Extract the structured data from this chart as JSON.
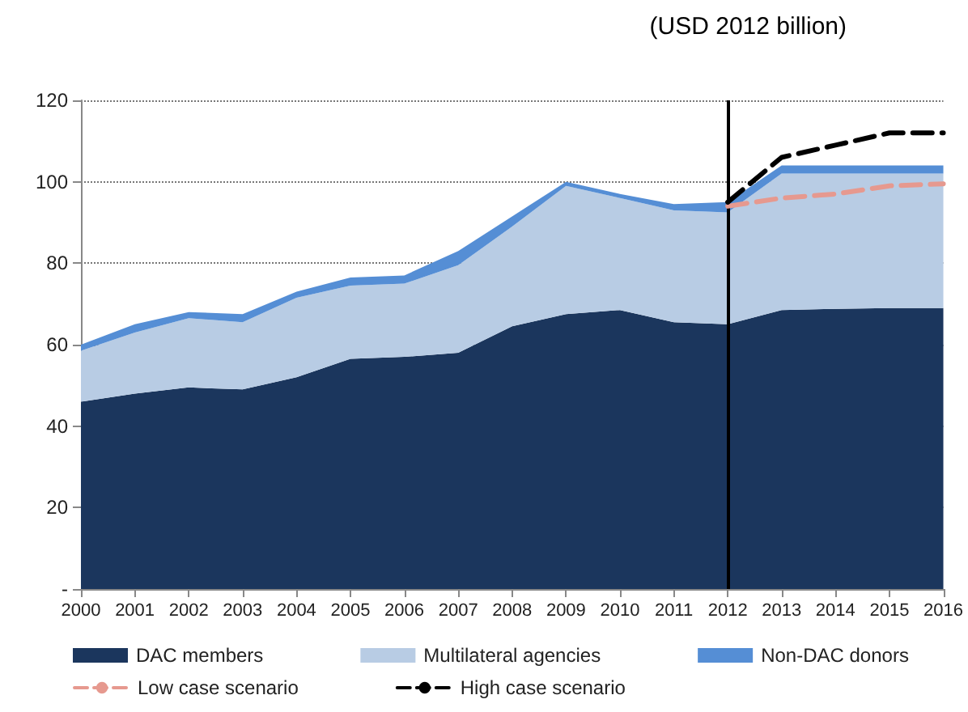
{
  "chart_data": {
    "type": "area",
    "title": "(USD 2012 billion)",
    "stacked": true,
    "categories": [
      "2000",
      "2001",
      "2002",
      "2003",
      "2004",
      "2005",
      "2006",
      "2007",
      "2008",
      "2009",
      "2010",
      "2011",
      "2012",
      "2013",
      "2014",
      "2015",
      "2016"
    ],
    "series": [
      {
        "name": "DAC members",
        "color": "#1b365d",
        "values": [
          46,
          48,
          49.5,
          49,
          52,
          56.5,
          57,
          58,
          64.5,
          67.5,
          68.5,
          65.5,
          65,
          68.5,
          68.8,
          69,
          69
        ]
      },
      {
        "name": "Multilateral agencies",
        "color": "#b8cce4",
        "values": [
          12.5,
          15,
          17,
          16.5,
          19.5,
          18,
          18,
          21.5,
          24.5,
          31.5,
          27.5,
          27.5,
          27.5,
          33.5,
          33.2,
          33,
          33
        ]
      },
      {
        "name": "Non-DAC donors",
        "color": "#558ed5",
        "values": [
          1.5,
          2,
          1.5,
          2,
          1.5,
          2,
          2,
          3.5,
          2.5,
          1,
          1,
          1.5,
          2.5,
          2,
          2,
          2,
          2
        ]
      },
      {
        "name": "Low case scenario",
        "type": "line",
        "color": "#e6998f",
        "line_style": "dashed",
        "marker": "none",
        "values": [
          null,
          null,
          null,
          null,
          null,
          null,
          null,
          null,
          null,
          null,
          null,
          null,
          94,
          96,
          97,
          99,
          99.5
        ]
      },
      {
        "name": "High case scenario",
        "type": "line",
        "color": "#000000",
        "line_style": "dashed",
        "marker": "none",
        "values": [
          null,
          null,
          null,
          null,
          null,
          null,
          null,
          null,
          null,
          null,
          null,
          null,
          95,
          106,
          109,
          112,
          112
        ]
      }
    ],
    "ylim": [
      0,
      120
    ],
    "yticks": [
      {
        "value": 0,
        "label": "-"
      },
      20,
      40,
      60,
      80,
      100,
      120
    ],
    "grid": "y",
    "legend": "bottom",
    "ref_lines": [
      {
        "axis": "x",
        "value": "2012",
        "color": "#000000"
      }
    ]
  }
}
